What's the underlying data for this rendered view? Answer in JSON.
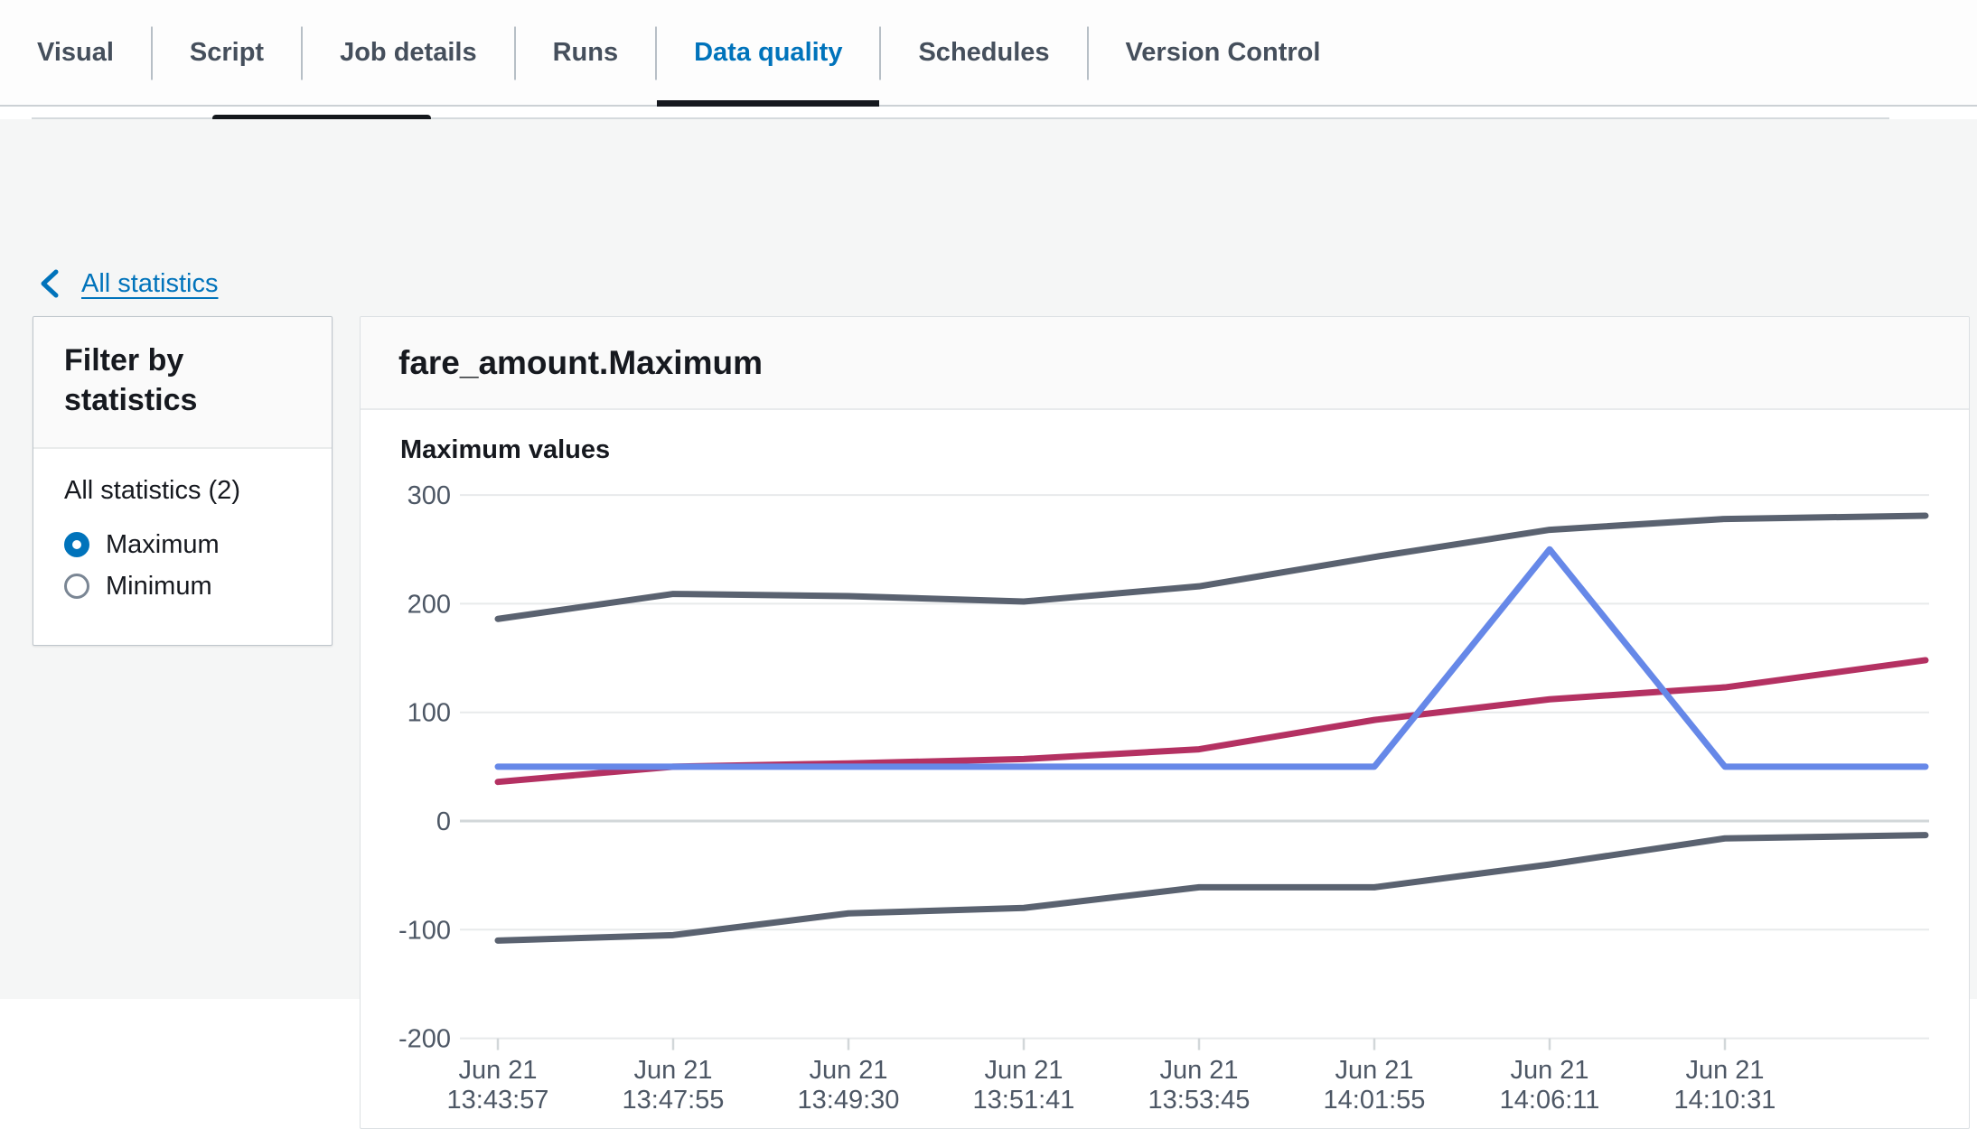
{
  "tabs": {
    "items": [
      {
        "label": "Visual",
        "active": false
      },
      {
        "label": "Script",
        "active": false
      },
      {
        "label": "Job details",
        "active": false
      },
      {
        "label": "Runs",
        "active": false
      },
      {
        "label": "Data quality",
        "active": true
      },
      {
        "label": "Schedules",
        "active": false
      },
      {
        "label": "Version Control",
        "active": false
      }
    ]
  },
  "back_link": {
    "label": "All statistics"
  },
  "filter_panel": {
    "title": "Filter by statistics",
    "group_label": "All statistics (2)",
    "options": [
      {
        "label": "Maximum",
        "selected": true
      },
      {
        "label": "Minimum",
        "selected": false
      }
    ]
  },
  "card": {
    "title": "fare_amount.Maximum"
  },
  "colors": {
    "accent_blue": "#0073bb",
    "active_tab_indicator": "#16191f",
    "grid": "#e8eaeb",
    "axis": "#d2d7d9",
    "axis_text": "#4d5765"
  },
  "chart_data": {
    "type": "line",
    "title": "Maximum values",
    "xlabel": "",
    "ylabel": "",
    "ylim": [
      -200,
      300
    ],
    "grid": "horizontal",
    "legend": "none",
    "y_ticks": [
      300,
      200,
      100,
      0,
      -100,
      -200
    ],
    "x_tick_labels": [
      [
        "Jun 21",
        "13:43:57"
      ],
      [
        "Jun 21",
        "13:47:55"
      ],
      [
        "Jun 21",
        "13:49:30"
      ],
      [
        "Jun 21",
        "13:51:41"
      ],
      [
        "Jun 21",
        "13:53:45"
      ],
      [
        "Jun 21",
        "14:01:55"
      ],
      [
        "Jun 21",
        "14:06:11"
      ],
      [
        "Jun 21",
        "14:10:31"
      ]
    ],
    "note": "series have 9 points: one per labeled tick plus an unlabeled point at the right edge of the plot",
    "series": [
      {
        "name": "gray-upper-line",
        "color": "#5a6270",
        "values": [
          186,
          209,
          207,
          202,
          216,
          243,
          268,
          278,
          281
        ]
      },
      {
        "name": "gray-lower-line",
        "color": "#5a6270",
        "values": [
          -110,
          -105,
          -85,
          -80,
          -61,
          -61,
          -40,
          -16,
          -13
        ]
      },
      {
        "name": "red-line",
        "color": "#b43162",
        "values": [
          36,
          50,
          53,
          57,
          66,
          93,
          112,
          123,
          148
        ]
      },
      {
        "name": "blue-line",
        "color": "#6688e8",
        "values": [
          50,
          50,
          50,
          50,
          50,
          50,
          250,
          50,
          50
        ]
      }
    ]
  }
}
